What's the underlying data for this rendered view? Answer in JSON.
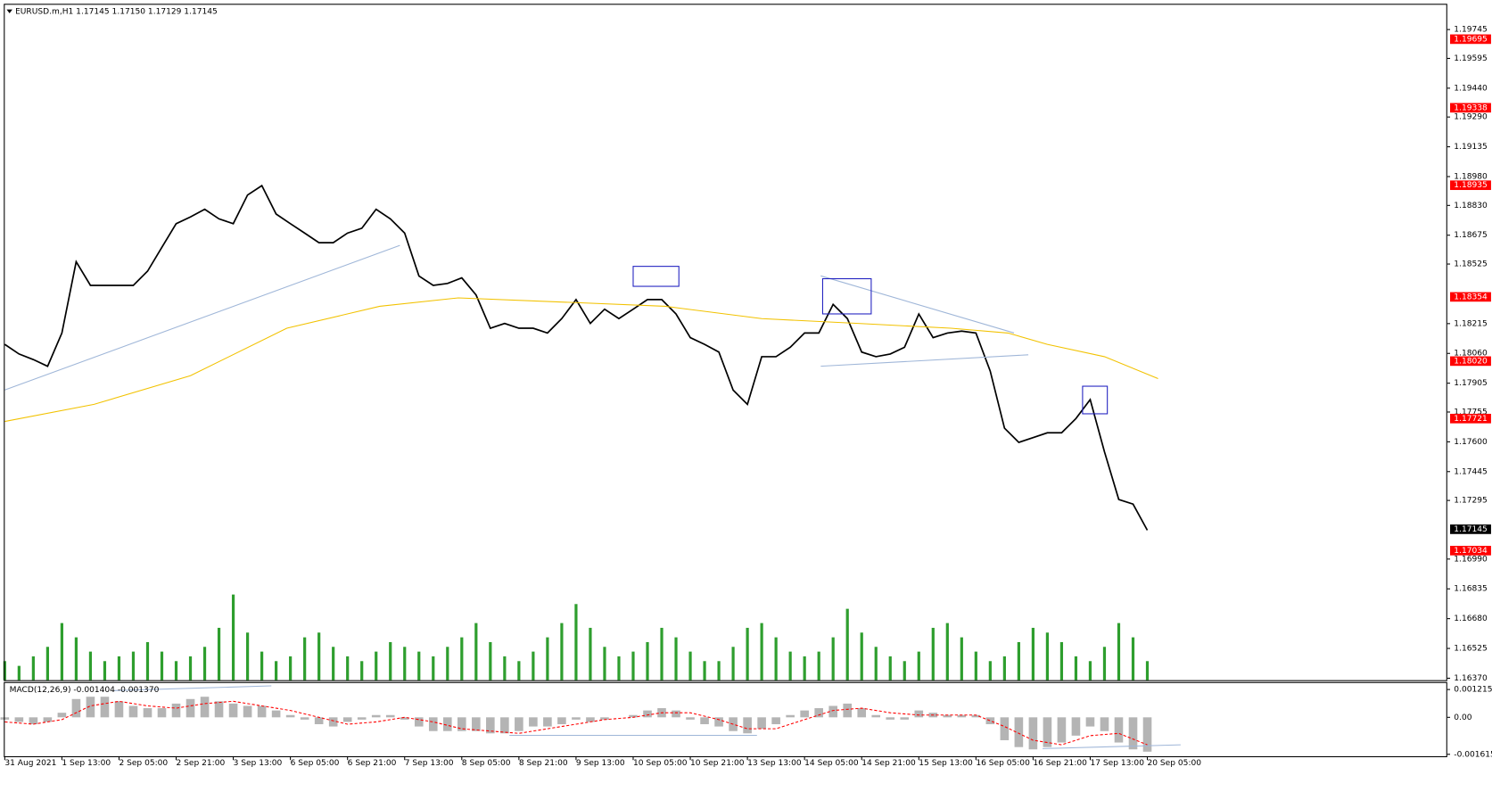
{
  "chart_data": [
    {
      "type": "line",
      "title": "EURUSD.m,H1  1.17145 1.17150 1.17129 1.17145",
      "xlim": [
        0,
        404
      ],
      "ylim": [
        1.1636,
        1.19874
      ],
      "yticks": [
        1.19745,
        1.19595,
        {
          "value": 1.1944,
          "label": "1.19440"
        },
        {
          "value": 1.1929,
          "label": "1.19290"
        },
        1.19135,
        {
          "value": 1.1898,
          "label": "1.18980"
        },
        {
          "value": 1.1883,
          "label": "1.18830"
        },
        1.18675,
        1.18525,
        1.18215,
        {
          "value": 1.1806,
          "label": "1.18060"
        },
        1.17905,
        1.17755,
        {
          "value": 1.176,
          "label": "1.17600"
        },
        1.17445,
        1.17295,
        {
          "value": 1.1699,
          "label": "1.16990"
        },
        1.16835,
        {
          "value": 1.1668,
          "label": "1.16680"
        },
        1.16525,
        {
          "value": 1.1637,
          "label": "1.16370"
        }
      ],
      "xticks": [
        {
          "value": 0,
          "label": "31 Aug 2021"
        },
        {
          "value": 16,
          "label": "1 Sep 13:00"
        },
        {
          "value": 32,
          "label": "2 Sep 05:00"
        },
        {
          "value": 48,
          "label": "2 Sep 21:00"
        },
        {
          "value": 64,
          "label": "3 Sep 13:00"
        },
        {
          "value": 80,
          "label": "6 Sep 05:00"
        },
        {
          "value": 96,
          "label": "6 Sep 21:00"
        },
        {
          "value": 112,
          "label": "7 Sep 13:00"
        },
        {
          "value": 128,
          "label": "8 Sep 05:00"
        },
        {
          "value": 144,
          "label": "8 Sep 21:00"
        },
        {
          "value": 160,
          "label": "9 Sep 13:00"
        },
        {
          "value": 176,
          "label": "10 Sep 05:00"
        },
        {
          "value": 192,
          "label": "10 Sep 21:00"
        },
        {
          "value": 208,
          "label": "13 Sep 13:00"
        },
        {
          "value": 224,
          "label": "14 Sep 05:00"
        },
        {
          "value": 240,
          "label": "14 Sep 21:00"
        },
        {
          "value": 256,
          "label": "15 Sep 13:00"
        },
        {
          "value": 272,
          "label": "16 Sep 05:00"
        },
        {
          "value": 288,
          "label": "16 Sep 21:00"
        },
        {
          "value": 304,
          "label": "17 Sep 13:00"
        },
        {
          "value": 320,
          "label": "20 Sep 05:00"
        }
      ],
      "xgrid": [
        3,
        27,
        51,
        75,
        99,
        123,
        147,
        171,
        195,
        219,
        243,
        267,
        291,
        315,
        339
      ],
      "grid": true,
      "hlines": [
        1.19695,
        1.19338,
        1.18935,
        1.18354,
        {
          "value": 1.1802,
          "label": "1.18020"
        },
        1.17721,
        1.17034
      ],
      "hline_color": "#ff0000",
      "price_line": 1.17145,
      "series": [
        {
          "color": "#000000",
          "x": [
            0,
            4,
            8,
            12,
            16,
            20,
            24,
            28,
            32,
            36,
            40,
            44,
            48,
            52,
            56,
            60,
            64,
            68,
            72,
            76,
            80,
            84,
            88,
            92,
            96,
            100,
            104,
            108,
            112,
            116,
            120,
            124,
            128,
            132,
            136,
            140,
            144,
            148,
            152,
            156,
            160,
            164,
            168,
            172,
            176,
            180,
            184,
            188,
            192,
            196,
            200,
            204,
            208,
            212,
            216,
            220,
            224,
            228,
            232,
            236,
            240,
            244,
            248,
            252,
            256,
            260,
            264,
            268,
            272,
            276,
            280,
            284,
            288,
            292,
            296,
            300,
            304,
            308,
            312,
            316,
            320
          ],
          "values": [
            1.18107,
            1.18057,
            1.18028,
            1.17993,
            1.18166,
            1.18537,
            1.18414,
            1.18414,
            1.18414,
            1.18414,
            1.18488,
            1.18612,
            1.18735,
            1.1877,
            1.1881,
            1.1876,
            1.18735,
            1.18884,
            1.18933,
            1.18785,
            1.18735,
            1.18686,
            1.18636,
            1.18636,
            1.18686,
            1.18711,
            1.1881,
            1.1876,
            1.18686,
            1.18463,
            1.18414,
            1.18424,
            1.18453,
            1.18364,
            1.18191,
            1.18216,
            1.18191,
            1.18191,
            1.18166,
            1.18241,
            1.1834,
            1.18216,
            1.1829,
            1.18241,
            1.1829,
            1.1834,
            1.1834,
            1.18265,
            1.18142,
            1.18107,
            1.18067,
            1.17869,
            1.17795,
            1.18043,
            1.18043,
            1.18092,
            1.18166,
            1.18166,
            1.18315,
            1.18241,
            1.18067,
            1.18043,
            1.18057,
            1.18092,
            1.18265,
            1.18142,
            1.18166,
            1.18176,
            1.18166,
            1.17968,
            1.17671,
            1.17597,
            1.17622,
            1.17647,
            1.17647,
            1.17721,
            1.1782,
            1.17548,
            1.173,
            1.17276,
            1.1714
          ]
        },
        {
          "color": "#f2c200",
          "x": [
            0,
            25,
            52,
            79,
            105,
            127,
            159,
            185,
            212,
            239,
            265,
            281,
            292,
            308,
            323
          ],
          "values": [
            1.17706,
            1.17795,
            1.17944,
            1.18191,
            1.18305,
            1.18349,
            1.18325,
            1.18305,
            1.18241,
            1.18216,
            1.18191,
            1.18166,
            1.18107,
            1.18043,
            1.17929
          ]
        }
      ]
    },
    {
      "type": "bar",
      "color": "#2e9e2e",
      "x": [
        0,
        4,
        8,
        12,
        16,
        20,
        24,
        28,
        32,
        36,
        40,
        44,
        48,
        52,
        56,
        60,
        64,
        68,
        72,
        76,
        80,
        84,
        88,
        92,
        96,
        100,
        104,
        108,
        112,
        116,
        120,
        124,
        128,
        132,
        136,
        140,
        144,
        148,
        152,
        156,
        160,
        164,
        168,
        172,
        176,
        180,
        184,
        188,
        192,
        196,
        200,
        204,
        208,
        212,
        216,
        220,
        224,
        228,
        232,
        236,
        240,
        244,
        248,
        252,
        256,
        260,
        264,
        268,
        272,
        276,
        280,
        284,
        288,
        292,
        296,
        300,
        304,
        308,
        312,
        316,
        320
      ],
      "values": [
        20,
        15,
        25,
        35,
        60,
        45,
        30,
        20,
        25,
        30,
        40,
        30,
        20,
        25,
        35,
        55,
        90,
        50,
        30,
        20,
        25,
        45,
        50,
        35,
        25,
        20,
        30,
        40,
        35,
        30,
        25,
        35,
        45,
        60,
        40,
        25,
        20,
        30,
        45,
        60,
        80,
        55,
        35,
        25,
        30,
        40,
        55,
        45,
        30,
        20,
        20,
        35,
        55,
        60,
        45,
        30,
        25,
        30,
        45,
        75,
        50,
        35,
        25,
        20,
        30,
        55,
        60,
        45,
        30,
        20,
        25,
        40,
        55,
        50,
        40,
        25,
        20,
        35,
        60,
        45,
        20
      ]
    },
    {
      "type": "bar",
      "title": "MACD(12,26,9) -0.001404 -0.001370",
      "color": "#b4b4b4",
      "ylim": [
        -0.0017,
        0.0015
      ],
      "yticks": [
        0.001215,
        {
          "value": 0,
          "label": "0.00"
        },
        -0.001615
      ],
      "x": [
        0,
        4,
        8,
        12,
        16,
        20,
        24,
        28,
        32,
        36,
        40,
        44,
        48,
        52,
        56,
        60,
        64,
        68,
        72,
        76,
        80,
        84,
        88,
        92,
        96,
        100,
        104,
        108,
        112,
        116,
        120,
        124,
        128,
        132,
        136,
        140,
        144,
        148,
        152,
        156,
        160,
        164,
        168,
        172,
        176,
        180,
        184,
        188,
        192,
        196,
        200,
        204,
        208,
        212,
        216,
        220,
        224,
        228,
        232,
        236,
        240,
        244,
        248,
        252,
        256,
        260,
        264,
        268,
        272,
        276,
        280,
        284,
        288,
        292,
        296,
        300,
        304,
        308,
        312,
        316,
        320
      ],
      "values": [
        -0.0001,
        -0.0002,
        -0.0003,
        -0.0002,
        0.0002,
        0.0008,
        0.0009,
        0.0009,
        0.0007,
        0.0005,
        0.0004,
        0.0004,
        0.0006,
        0.0008,
        0.0009,
        0.0007,
        0.0006,
        0.0005,
        0.0005,
        0.0003,
        0.0001,
        -0.0001,
        -0.0003,
        -0.0004,
        -0.0002,
        -0.0001,
        0.0001,
        0.0001,
        -0.0001,
        -0.0004,
        -0.0006,
        -0.0006,
        -0.0006,
        -0.0006,
        -0.0007,
        -0.0007,
        -0.0006,
        -0.0004,
        -0.0004,
        -0.0003,
        -0.0001,
        -0.0002,
        -0.0001,
        0,
        0.0001,
        0.0003,
        0.0004,
        0.0003,
        -0.0001,
        -0.0003,
        -0.0004,
        -0.0006,
        -0.0007,
        -0.0005,
        -0.0003,
        0.0001,
        0.0003,
        0.0004,
        0.0005,
        0.0006,
        0.0004,
        0.0001,
        -0.0001,
        -0.0001,
        0.0003,
        0.0002,
        0.0001,
        0.0001,
        0.0001,
        -0.0003,
        -0.001,
        -0.0013,
        -0.0014,
        -0.0013,
        -0.0011,
        -0.0008,
        -0.0004,
        -0.0006,
        -0.0011,
        -0.0014,
        -0.0015
      ],
      "series": [
        {
          "color": "#ff0000",
          "x": [
            0,
            8,
            16,
            24,
            32,
            40,
            48,
            56,
            64,
            72,
            80,
            88,
            96,
            104,
            112,
            120,
            128,
            136,
            144,
            152,
            160,
            168,
            176,
            184,
            192,
            200,
            208,
            216,
            224,
            232,
            240,
            248,
            256,
            264,
            272,
            280,
            288,
            296,
            304,
            312,
            320
          ],
          "values": [
            -0.0002,
            -0.0003,
            -0.0001,
            0.0005,
            0.0007,
            0.0005,
            0.0004,
            0.0006,
            0.0007,
            0.0005,
            0.0003,
            0,
            -0.0003,
            -0.0002,
            0,
            -0.0002,
            -0.0005,
            -0.0006,
            -0.0007,
            -0.0005,
            -0.0003,
            -0.0001,
            0,
            0.0002,
            0.0002,
            -0.0001,
            -0.0005,
            -0.0005,
            -0.0001,
            0.0003,
            0.0004,
            0.0002,
            0.0001,
            0.0001,
            0.0001,
            -0.0004,
            -0.001,
            -0.0012,
            -0.0008,
            -0.0007,
            -0.0012
          ]
        }
      ]
    }
  ]
}
